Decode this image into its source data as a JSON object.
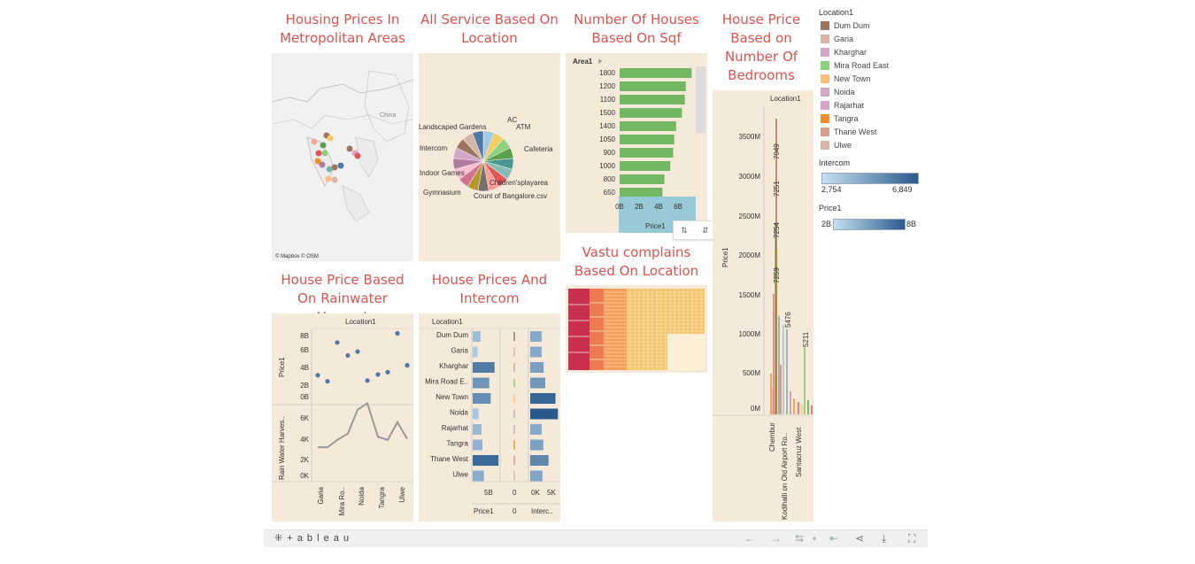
{
  "titles": {
    "map": "Housing Prices In Metropolitan Areas",
    "pie": "All Service Based On Location",
    "sqf": "Number Of Houses Based On Sqf",
    "bedrooms": "House Price Based on Number Of Bedrooms",
    "rainwater": "House Price Based On Rainwater Harvest",
    "intercom": "House Prices And Intercom",
    "vastu": "Vastu complains Based On Location"
  },
  "map": {
    "country_label": "China",
    "attribution": "© Mapbox © OSM"
  },
  "pie": {
    "labels": [
      "AC",
      "ATM",
      "Cafeteria",
      "Children'splayarea",
      "Count of Bangalore.csv",
      "Gymnasium",
      "Indoor Games",
      "Intercom",
      "Landscaped Gardens"
    ],
    "colors": [
      "#a0cbe8",
      "#f1ce63",
      "#8cd17d",
      "#59a14f",
      "#499894",
      "#86bcb6",
      "#e15759",
      "#ff9d9a",
      "#79706e",
      "#b6992d",
      "#d37295",
      "#fabfd2",
      "#b07aa1",
      "#d4a6c8",
      "#9d7660",
      "#d7b5a6",
      "#4e79a7"
    ]
  },
  "sqf": {
    "header": "Area1",
    "axis_label": "Price1",
    "categories": [
      "1800",
      "1200",
      "1100",
      "1500",
      "1400",
      "1050",
      "900",
      "1000",
      "800",
      "650"
    ],
    "values": [
      7.4,
      6.8,
      6.7,
      6.4,
      5.8,
      5.6,
      5.5,
      5.2,
      4.6,
      4.4
    ],
    "ticks": [
      "0B",
      "2B",
      "4B",
      "6B"
    ],
    "bar_color": "#72b862"
  },
  "bedrooms": {
    "header": "Location1",
    "ylabel": "Price1",
    "yticks": [
      "3500M",
      "3000M",
      "2500M",
      "2000M",
      "1500M",
      "1000M",
      "500M",
      "0M"
    ],
    "value_labels": [
      "7049",
      "7251",
      "7254",
      "7259",
      "5476",
      "5211"
    ],
    "xlabels": [
      "Chembur",
      "Kodihalli on Old Airport Ro..",
      "Santacruz West"
    ]
  },
  "rainwater": {
    "header": "Location1",
    "ylabel_top": "Price1",
    "ylabel_bottom": "Rain Water Harves..",
    "yticks_top": [
      "8B",
      "6B",
      "4B",
      "2B",
      "0B"
    ],
    "yticks_bottom": [
      "6K",
      "4K",
      "2K",
      "0K"
    ],
    "xlabels": [
      "Garia",
      "Mira Ro..",
      "Noida",
      "Tangra",
      "Ulwe"
    ],
    "price_points": [
      2.7,
      1.9,
      7.0,
      5.3,
      5.8,
      2.0,
      2.8,
      3.1,
      8.2,
      4.0
    ],
    "rain_points": [
      2.7,
      2.7,
      3.4,
      4.0,
      6.3,
      6.9,
      3.7,
      3.4,
      5.1,
      3.5
    ]
  },
  "intercom": {
    "header": "Location1",
    "locations": [
      "Dum Dum",
      "Garia",
      "Kharghar",
      "Mira Road E..",
      "New Town",
      "Noida",
      "Rajarhat",
      "Tangra",
      "Thane West",
      "Ulwe"
    ],
    "price_values": [
      1.6,
      1.0,
      4.5,
      3.4,
      3.7,
      1.2,
      1.8,
      2.0,
      5.3,
      2.3
    ],
    "intercom_values": [
      2.8,
      2.8,
      3.3,
      3.7,
      6.2,
      6.8,
      2.8,
      3.2,
      4.5,
      3.0
    ],
    "col_price": "Price1",
    "col_zero": "0",
    "col_intercom": "Interc..",
    "tick_price": "5B",
    "tick_zero": "0",
    "tick_intercom": [
      "0K",
      "5K"
    ]
  },
  "legend": {
    "location_title": "Location1",
    "locations": [
      {
        "name": "Dum Dum",
        "color": "#9c7660"
      },
      {
        "name": "Garia",
        "color": "#d7b5a6"
      },
      {
        "name": "Kharghar",
        "color": "#d4a6c8"
      },
      {
        "name": "Mira Road East",
        "color": "#8cd17d"
      },
      {
        "name": "New Town",
        "color": "#ffbe7d"
      },
      {
        "name": "Noida",
        "color": "#d4a6c8"
      },
      {
        "name": "Rajarhat",
        "color": "#d4a6c8"
      },
      {
        "name": "Tangra",
        "color": "#f28e2b"
      },
      {
        "name": "Thane West",
        "color": "#d7a08c"
      },
      {
        "name": "Ulwe",
        "color": "#d7b5a6"
      }
    ],
    "intercom_title": "Intercom",
    "intercom_min": "2,754",
    "intercom_max": "6,849",
    "price_title": "Price1",
    "price_min": "2B",
    "price_max": "8B"
  },
  "toolbar": {
    "logo": "+ a b l e a u"
  }
}
